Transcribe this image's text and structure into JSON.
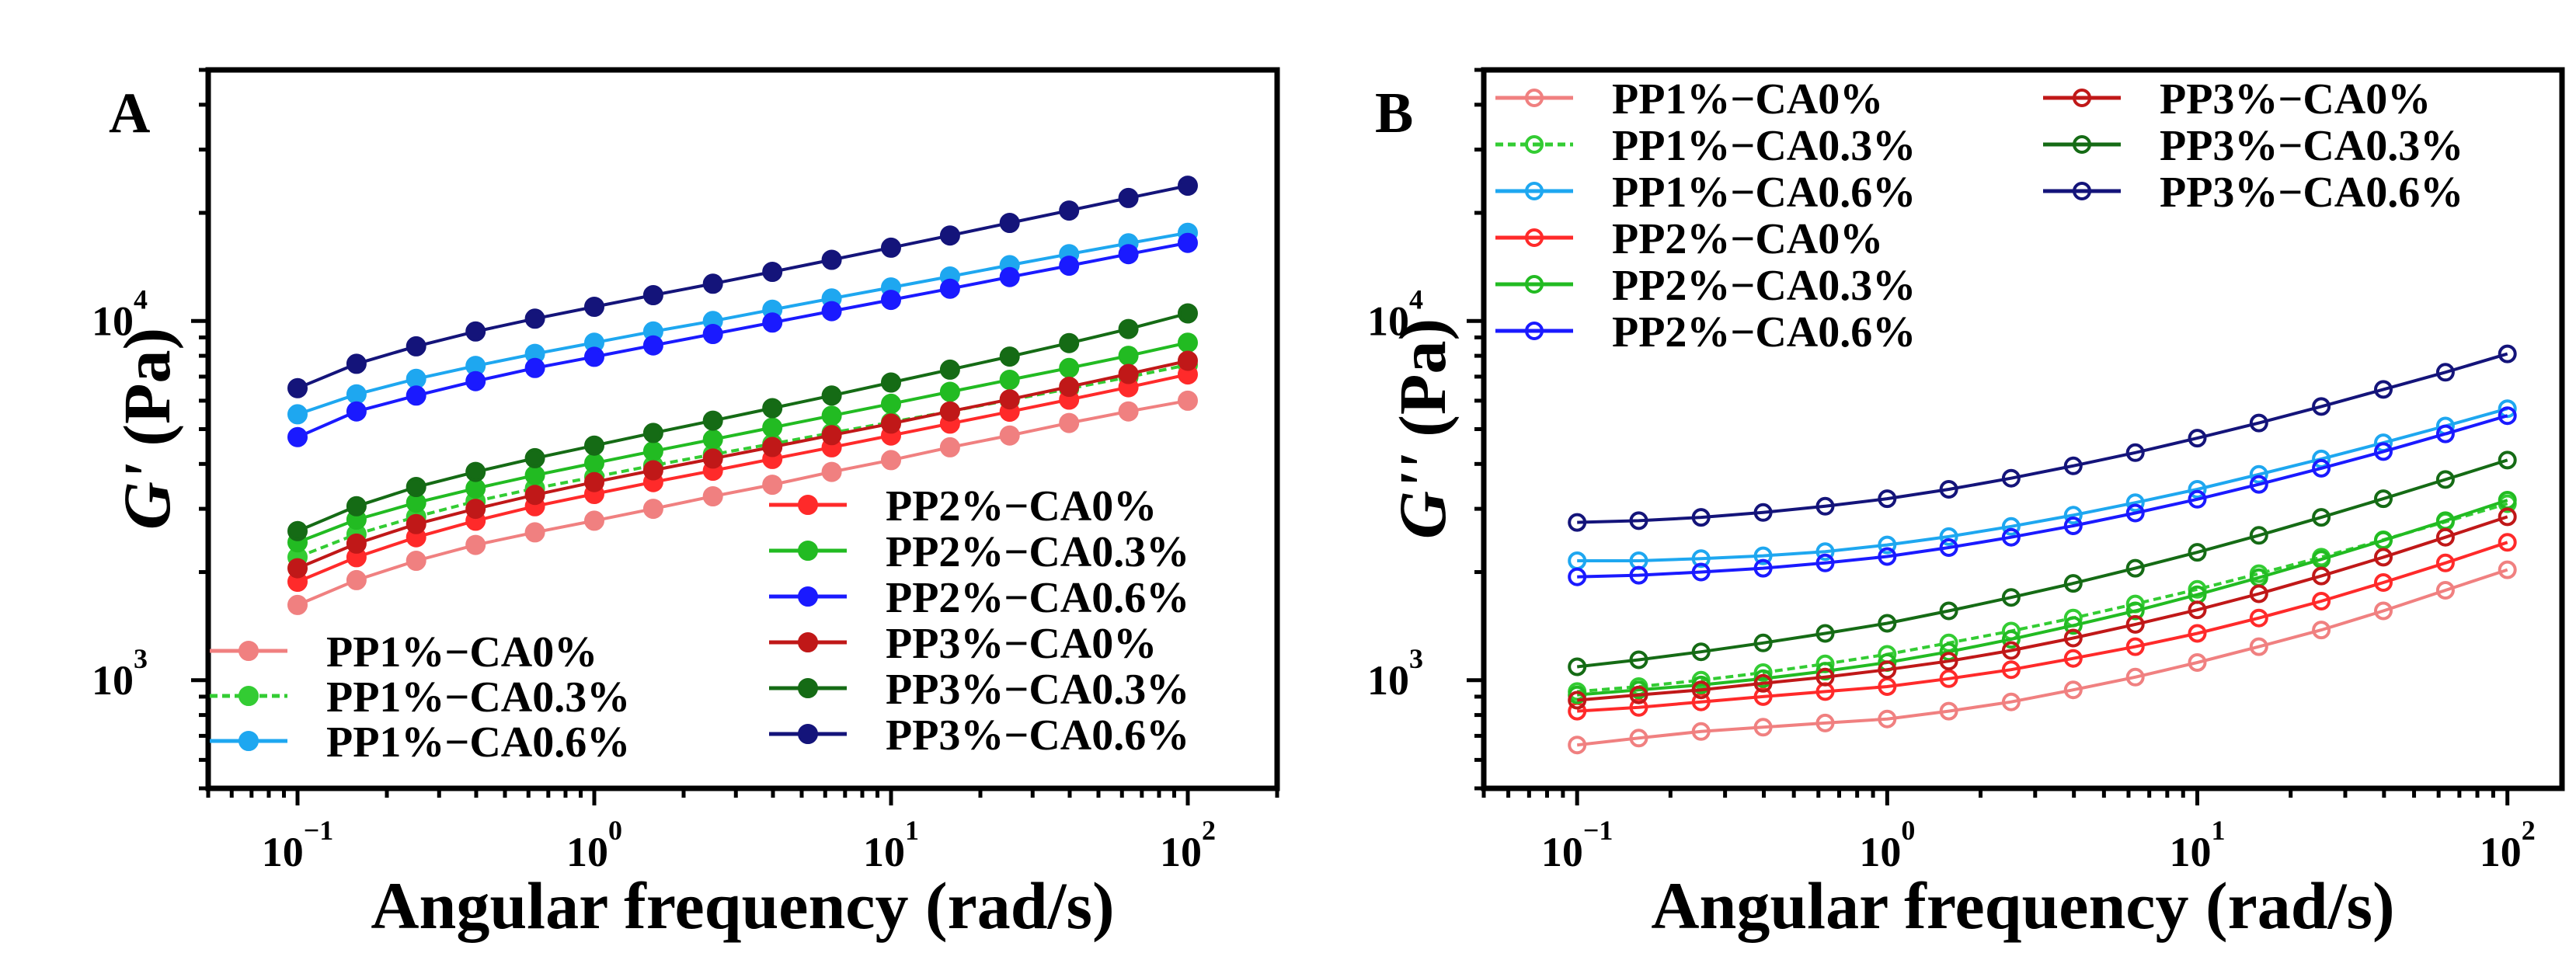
{
  "chart_data": [
    {
      "panel_label": "A",
      "type": "line",
      "title": "",
      "xscale": "log",
      "yscale": "log",
      "xlabel": "Angular frequency (rad/s)",
      "ylabel_italic": "G'",
      "ylabel_unit": " (Pa)",
      "xlim": [
        0.05,
        200
      ],
      "ylim": [
        500,
        50000
      ],
      "xticks": [
        {
          "value": 0.1,
          "base": "10",
          "exp": "−1"
        },
        {
          "value": 1,
          "base": "10",
          "exp": "0"
        },
        {
          "value": 10,
          "base": "10",
          "exp": "1"
        },
        {
          "value": 100,
          "base": "10",
          "exp": "2"
        }
      ],
      "yticks": [
        {
          "value": 1000,
          "base": "10",
          "exp": "3"
        },
        {
          "value": 10000,
          "base": "10",
          "exp": "4"
        }
      ],
      "marker_fill": "filled",
      "x": [
        0.1,
        0.158,
        0.251,
        0.398,
        0.631,
        1,
        1.58,
        2.51,
        3.98,
        6.31,
        10,
        15.8,
        25.1,
        39.8,
        63.1,
        100
      ],
      "series": [
        {
          "name": "PP1%−CA0%",
          "color": "#f08080",
          "values": [
            1620,
            1900,
            2150,
            2380,
            2580,
            2780,
            3000,
            3250,
            3500,
            3800,
            4100,
            4450,
            4800,
            5200,
            5600,
            6000
          ]
        },
        {
          "name": "PP1%−CA0.3%",
          "color": "#33cc33",
          "dashed": true,
          "values": [
            2200,
            2550,
            2850,
            3150,
            3420,
            3680,
            3960,
            4250,
            4550,
            4880,
            5230,
            5600,
            6020,
            6480,
            6980,
            7550
          ]
        },
        {
          "name": "PP1%−CA0.6%",
          "color": "#1ea7f0",
          "values": [
            5500,
            6250,
            6900,
            7500,
            8100,
            8700,
            9350,
            10000,
            10750,
            11550,
            12400,
            13300,
            14300,
            15350,
            16450,
            17600
          ]
        },
        {
          "name": "PP2%−CA0%",
          "color": "#ff2a2a",
          "values": [
            1880,
            2200,
            2500,
            2780,
            3050,
            3300,
            3560,
            3830,
            4130,
            4450,
            4800,
            5180,
            5590,
            6040,
            6540,
            7100
          ]
        },
        {
          "name": "PP2%−CA0.3%",
          "color": "#22bb22",
          "values": [
            2420,
            2800,
            3120,
            3420,
            3720,
            4020,
            4340,
            4680,
            5050,
            5450,
            5880,
            6350,
            6860,
            7400,
            8000,
            8700
          ]
        },
        {
          "name": "PP2%−CA0.6%",
          "color": "#1a1aff",
          "values": [
            4750,
            5600,
            6200,
            6800,
            7400,
            7950,
            8550,
            9200,
            9900,
            10650,
            11450,
            12300,
            13250,
            14250,
            15350,
            16500
          ]
        },
        {
          "name": "PP3%−CA0%",
          "color": "#c01818",
          "values": [
            2050,
            2400,
            2720,
            3000,
            3280,
            3560,
            3840,
            4140,
            4460,
            4810,
            5180,
            5600,
            6050,
            6560,
            7120,
            7750
          ]
        },
        {
          "name": "PP3%−CA0.3%",
          "color": "#156b15",
          "values": [
            2600,
            3050,
            3450,
            3800,
            4150,
            4500,
            4880,
            5280,
            5720,
            6200,
            6740,
            7320,
            7960,
            8680,
            9500,
            10500
          ]
        },
        {
          "name": "PP3%−CA0.6%",
          "color": "#14147a",
          "values": [
            6500,
            7600,
            8500,
            9350,
            10150,
            10950,
            11800,
            12700,
            13700,
            14800,
            16000,
            17300,
            18750,
            20300,
            22000,
            23800
          ]
        }
      ],
      "legend_left": [
        "PP1%−CA0%",
        "PP1%−CA0.3%",
        "PP1%−CA0.6%"
      ],
      "legend_right": [
        "PP2%−CA0%",
        "PP2%−CA0.3%",
        "PP2%−CA0.6%",
        "PP3%−CA0%",
        "PP3%−CA0.3%",
        "PP3%−CA0.6%"
      ]
    },
    {
      "panel_label": "B",
      "type": "line",
      "title": "",
      "xscale": "log",
      "yscale": "log",
      "xlabel": "Angular frequency (rad/s)",
      "ylabel_italic": "G''",
      "ylabel_unit": " (Pa)",
      "xlim": [
        0.05,
        150
      ],
      "ylim": [
        500,
        50000
      ],
      "xticks": [
        {
          "value": 0.1,
          "base": "10",
          "exp": "−1"
        },
        {
          "value": 1,
          "base": "10",
          "exp": "0"
        },
        {
          "value": 10,
          "base": "10",
          "exp": "1"
        },
        {
          "value": 100,
          "base": "10",
          "exp": "2"
        }
      ],
      "yticks": [
        {
          "value": 1000,
          "base": "10",
          "exp": "3"
        },
        {
          "value": 10000,
          "base": "10",
          "exp": "4"
        }
      ],
      "marker_fill": "open",
      "x": [
        0.1,
        0.158,
        0.251,
        0.398,
        0.631,
        1,
        1.58,
        2.51,
        3.98,
        6.31,
        10,
        15.8,
        25.1,
        39.8,
        63.1,
        100
      ],
      "series": [
        {
          "name": "PP1%−CA0%",
          "color": "#f08080",
          "values": [
            660,
            690,
            720,
            740,
            760,
            780,
            820,
            870,
            940,
            1020,
            1120,
            1240,
            1380,
            1560,
            1780,
            2030
          ]
        },
        {
          "name": "PP1%−CA0.3%",
          "color": "#33cc33",
          "dashed": true,
          "values": [
            930,
            960,
            1000,
            1050,
            1110,
            1180,
            1270,
            1370,
            1490,
            1630,
            1790,
            1980,
            2200,
            2460,
            2760,
            3100
          ]
        },
        {
          "name": "PP1%−CA0.6%",
          "color": "#1ea7f0",
          "values": [
            2150,
            2150,
            2180,
            2220,
            2280,
            2380,
            2510,
            2680,
            2880,
            3120,
            3400,
            3740,
            4130,
            4580,
            5100,
            5700
          ]
        },
        {
          "name": "PP2%−CA0%",
          "color": "#ff2a2a",
          "values": [
            820,
            840,
            870,
            900,
            930,
            960,
            1010,
            1070,
            1150,
            1240,
            1350,
            1490,
            1660,
            1870,
            2120,
            2420
          ]
        },
        {
          "name": "PP2%−CA0.3%",
          "color": "#22bb22",
          "values": [
            910,
            940,
            970,
            1010,
            1060,
            1120,
            1200,
            1300,
            1420,
            1560,
            1730,
            1930,
            2170,
            2450,
            2780,
            3170
          ]
        },
        {
          "name": "PP2%−CA0.6%",
          "color": "#1a1aff",
          "values": [
            1940,
            1960,
            2000,
            2050,
            2120,
            2210,
            2340,
            2500,
            2690,
            2920,
            3190,
            3510,
            3890,
            4330,
            4850,
            5450
          ]
        },
        {
          "name": "PP3%−CA0%",
          "color": "#c01818",
          "values": [
            880,
            910,
            940,
            980,
            1020,
            1070,
            1130,
            1210,
            1310,
            1430,
            1570,
            1740,
            1950,
            2200,
            2500,
            2850
          ]
        },
        {
          "name": "PP3%−CA0.3%",
          "color": "#156b15",
          "values": [
            1090,
            1140,
            1200,
            1270,
            1350,
            1440,
            1560,
            1700,
            1860,
            2050,
            2270,
            2530,
            2840,
            3200,
            3620,
            4100
          ]
        },
        {
          "name": "PP3%−CA0.6%",
          "color": "#14147a",
          "values": [
            2750,
            2780,
            2840,
            2930,
            3050,
            3200,
            3400,
            3650,
            3950,
            4300,
            4720,
            5200,
            5780,
            6450,
            7200,
            8100
          ]
        }
      ],
      "legend_col1": [
        "PP1%−CA0%",
        "PP1%−CA0.3%",
        "PP1%−CA0.6%",
        "PP2%−CA0%",
        "PP2%−CA0.3%",
        "PP2%−CA0.6%"
      ],
      "legend_col2": [
        "PP3%−CA0%",
        "PP3%−CA0.3%",
        "PP3%−CA0.6%"
      ]
    }
  ]
}
